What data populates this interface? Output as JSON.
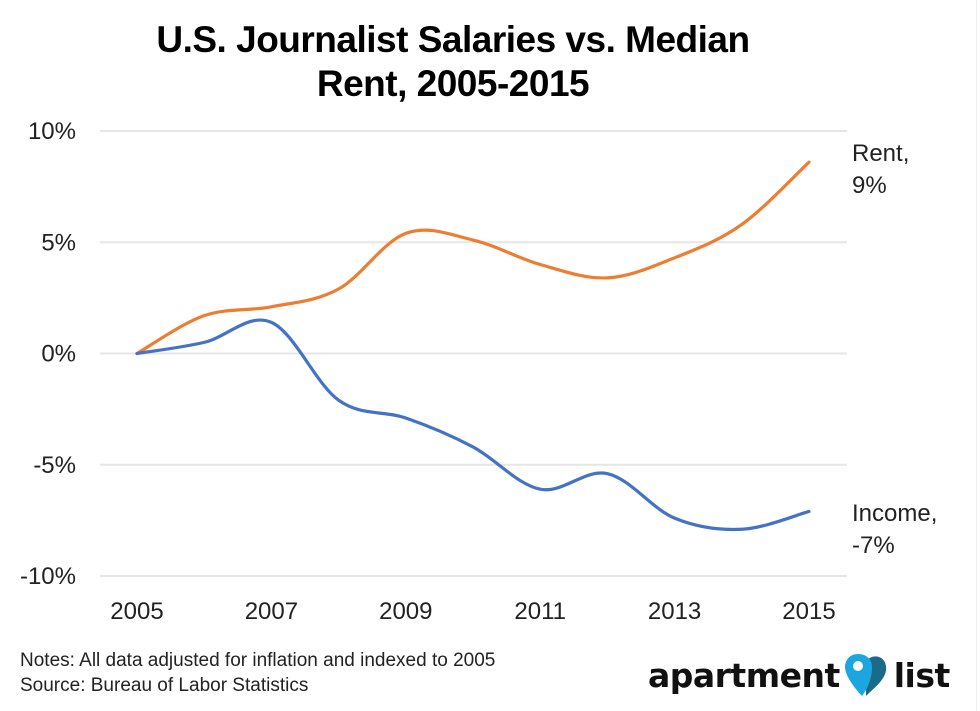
{
  "chart_data": {
    "type": "line",
    "title": "U.S. Journalist Salaries vs. Median Rent, 2005-2015",
    "title_lines": [
      "U.S. Journalist Salaries vs. Median",
      "Rent, 2005-2015"
    ],
    "xlabel": "",
    "ylabel": "",
    "x": [
      2005,
      2006,
      2007,
      2008,
      2009,
      2010,
      2011,
      2012,
      2013,
      2014,
      2015
    ],
    "x_tick_labels": [
      "2005",
      "2007",
      "2009",
      "2011",
      "2013",
      "2015"
    ],
    "x_tick_values": [
      2005,
      2007,
      2009,
      2011,
      2013,
      2015
    ],
    "y_tick_labels": [
      "10%",
      "5%",
      "0%",
      "-5%",
      "-10%"
    ],
    "y_tick_values": [
      10,
      5,
      0,
      -5,
      -10
    ],
    "ylim": [
      -10,
      10
    ],
    "xlim": [
      2005,
      2015
    ],
    "grid": "horizontal",
    "legend": "none (direct end labels at right)",
    "smoothed": true,
    "series": [
      {
        "name": "Rent",
        "color": "#ED7D31",
        "values": [
          0,
          1.7,
          2.1,
          2.9,
          5.4,
          5.1,
          4.0,
          3.4,
          4.3,
          5.8,
          8.6
        ],
        "end_label": [
          "Rent,",
          "9%"
        ]
      },
      {
        "name": "Income",
        "color": "#4472C4",
        "values": [
          0,
          0.5,
          1.4,
          -2.1,
          -2.9,
          -4.2,
          -6.1,
          -5.4,
          -7.4,
          -7.9,
          -7.1
        ],
        "end_label": [
          "Income,",
          "-7%"
        ]
      }
    ],
    "units": "percent change vs 2005, inflation-adjusted"
  },
  "footer": {
    "notes": "Notes: All data adjusted for inflation and indexed to 2005",
    "source": "Source: Bureau of Labor Statistics"
  },
  "logo": {
    "word_left": "apartment",
    "word_right": "list",
    "icon": "map-pin-heart-icon",
    "colors": {
      "pin": "#1BA6E0",
      "heart": "#1B6A8A",
      "text": "#111111"
    }
  },
  "colors": {
    "gridline": "#E6E6E6",
    "rent": "#ED7D31",
    "income": "#4472C4"
  }
}
